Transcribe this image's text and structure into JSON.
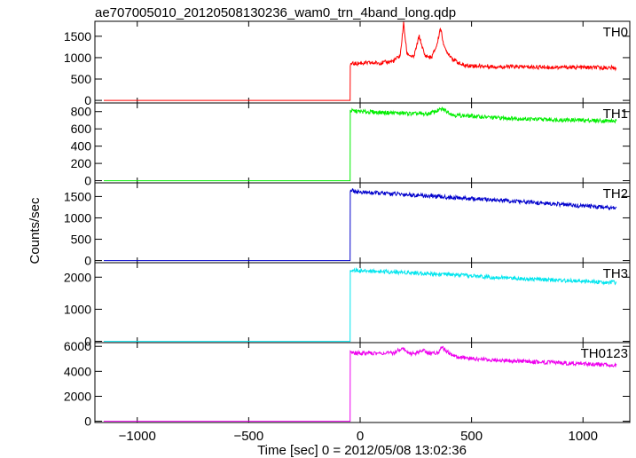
{
  "title": "ae707005010_20120508130236_wam0_trn_4band_long.qdp",
  "ylabel": "Counts/sec",
  "xlabel": "Time [sec] 0 = 2012/05/08 13:02:36",
  "chart_data": {
    "type": "line",
    "title": "ae707005010_20120508130236_wam0_trn_4band_long.qdp",
    "xlabel": "Time [sec] 0 = 2012/05/08 13:02:36",
    "ylabel": "Counts/sec",
    "xlim": [
      -1190,
      1210
    ],
    "xticks": [
      -1000,
      -500,
      0,
      500,
      1000
    ],
    "xtick_labels": [
      "−1000",
      "−500",
      "0",
      "500",
      "1000"
    ],
    "panels": [
      {
        "name": "TH0",
        "color": "#ff0000",
        "ylim": [
          -60,
          1850
        ],
        "yticks": [
          0,
          500,
          1000,
          1500
        ],
        "x": [
          -1150,
          -45,
          -44,
          0,
          100,
          150,
          180,
          195,
          210,
          240,
          265,
          290,
          320,
          345,
          360,
          380,
          420,
          460,
          600,
          800,
          1000,
          1150
        ],
        "y": [
          0,
          0,
          850,
          870,
          880,
          920,
          1050,
          1800,
          1100,
          1000,
          1500,
          1050,
          1000,
          1300,
          1700,
          1200,
          950,
          820,
          790,
          780,
          770,
          760
        ]
      },
      {
        "name": "TH1",
        "color": "#00ee00",
        "ylim": [
          -25,
          900
        ],
        "yticks": [
          0,
          200,
          400,
          600,
          800
        ],
        "x": [
          -1150,
          -45,
          -44,
          0,
          200,
          300,
          370,
          420,
          600,
          800,
          1000,
          1150
        ],
        "y": [
          0,
          0,
          810,
          800,
          780,
          770,
          830,
          760,
          730,
          710,
          700,
          690
        ]
      },
      {
        "name": "TH2",
        "color": "#0000cc",
        "ylim": [
          -50,
          1820
        ],
        "yticks": [
          0,
          500,
          1000,
          1500
        ],
        "x": [
          -1150,
          -45,
          -44,
          0,
          200,
          400,
          600,
          800,
          1000,
          1150
        ],
        "y": [
          0,
          0,
          1650,
          1600,
          1550,
          1480,
          1420,
          1350,
          1280,
          1240
        ]
      },
      {
        "name": "TH3",
        "color": "#00e5ee",
        "ylim": [
          -40,
          2450
        ],
        "yticks": [
          0,
          1000,
          2000
        ],
        "x": [
          -1150,
          -45,
          -44,
          0,
          200,
          400,
          600,
          800,
          1000,
          1150
        ],
        "y": [
          0,
          0,
          2230,
          2200,
          2150,
          2080,
          2000,
          1930,
          1870,
          1830
        ]
      },
      {
        "name": "TH0123",
        "color": "#ee00ee",
        "ylim": [
          -100,
          6300
        ],
        "yticks": [
          0,
          2000,
          4000,
          6000
        ],
        "x": [
          -1150,
          -45,
          -44,
          0,
          150,
          190,
          220,
          260,
          280,
          320,
          350,
          370,
          400,
          440,
          600,
          800,
          1000,
          1150
        ],
        "y": [
          0,
          0,
          5500,
          5450,
          5450,
          5900,
          5400,
          5500,
          5700,
          5400,
          5550,
          5900,
          5450,
          5100,
          4900,
          4750,
          4600,
          4500
        ]
      }
    ]
  }
}
